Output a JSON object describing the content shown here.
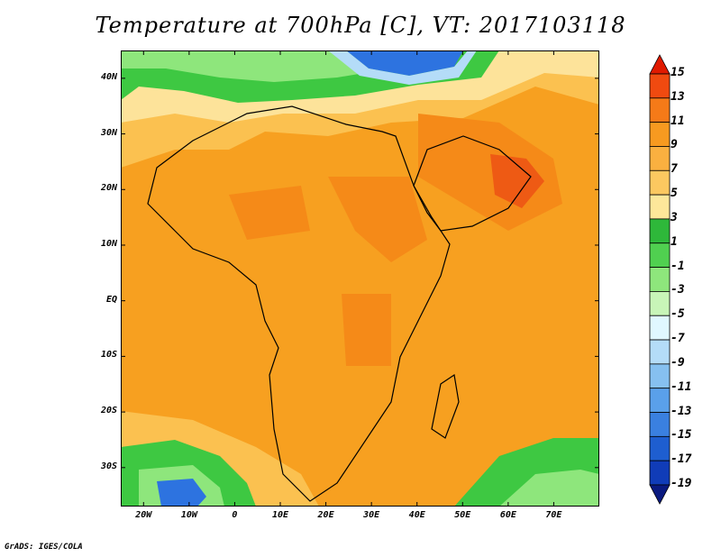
{
  "title": "Temperature at 700hPa [C], VT: 2017103118",
  "credit": "GrADS: IGES/COLA",
  "map": {
    "projection": "latlon",
    "lon_range": [
      -25,
      80
    ],
    "lat_range": [
      -37,
      45
    ],
    "lat_ticks": [
      {
        "value": 40,
        "label": "40N"
      },
      {
        "value": 30,
        "label": "30N"
      },
      {
        "value": 20,
        "label": "20N"
      },
      {
        "value": 10,
        "label": "10N"
      },
      {
        "value": 0,
        "label": "EQ"
      },
      {
        "value": -10,
        "label": "10S"
      },
      {
        "value": -20,
        "label": "20S"
      },
      {
        "value": -30,
        "label": "30S"
      }
    ],
    "lon_ticks": [
      {
        "value": -20,
        "label": "20W"
      },
      {
        "value": -10,
        "label": "10W"
      },
      {
        "value": 0,
        "label": "0"
      },
      {
        "value": 10,
        "label": "10E"
      },
      {
        "value": 20,
        "label": "20E"
      },
      {
        "value": 30,
        "label": "30E"
      },
      {
        "value": 40,
        "label": "40E"
      },
      {
        "value": 50,
        "label": "50E"
      },
      {
        "value": 60,
        "label": "60E"
      },
      {
        "value": 70,
        "label": "70E"
      }
    ],
    "field_colors": {
      "background": "#f7a020",
      "warm": "#f58a18",
      "hot": "#ee5a14",
      "mild": "#fbc150",
      "cool_yellow": "#fde39a",
      "green": "#3ec842",
      "light_green": "#8ee67c",
      "pale_green": "#c8f5b8",
      "pale_blue": "#b4dcf8",
      "blue": "#2d73e0",
      "land_outline": "#000000"
    }
  },
  "colorbar": {
    "levels": [
      "15",
      "13",
      "11",
      "9",
      "7",
      "5",
      "3",
      "1",
      "-1",
      "-3",
      "-5",
      "-7",
      "-9",
      "-11",
      "-13",
      "-15",
      "-17",
      "-19"
    ],
    "colors": [
      "#e01a00",
      "#f04a10",
      "#f57a18",
      "#f79a20",
      "#fab040",
      "#fcc860",
      "#fde79a",
      "#2eb83a",
      "#50d050",
      "#8ee67c",
      "#c8f5b8",
      "#e0f8ff",
      "#b4dcf8",
      "#86c0f0",
      "#5aa0ea",
      "#3a80e0",
      "#1e5ed0",
      "#103cb8",
      "#0a1a80"
    ]
  }
}
